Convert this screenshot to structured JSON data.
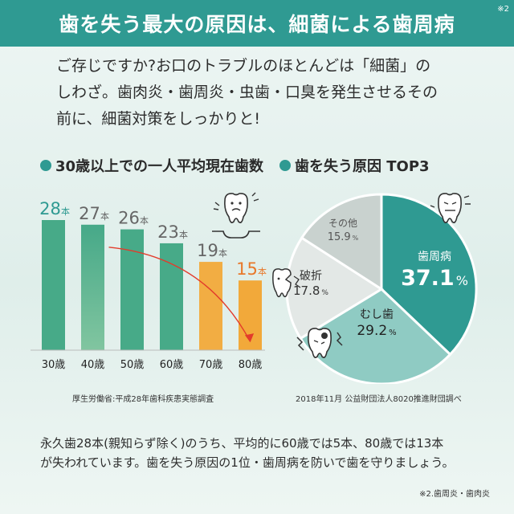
{
  "header": {
    "title": "歯を失う最大の原因は、細菌による歯周病",
    "sup": "※2"
  },
  "intro": {
    "line1": "ご存じですか?お口のトラブルのほとんどは「細菌」の",
    "line2": "しわざ。歯肉炎・歯周炎・虫歯・口臭を発生させるその",
    "line3": "前に、細菌対策をしっかりと!"
  },
  "left_section": {
    "title": "30歳以上での一人平均現在歯数"
  },
  "right_section": {
    "title": "歯を失う原因 TOP3"
  },
  "sources": {
    "left": "厚生労働省:平成28年歯科疾患実態調査",
    "right": "2018年11月 公益財団法人8020推進財団調べ"
  },
  "note": {
    "line1": "永久歯28本(親知らず除く)のうち、平均的に60歳では5本、80歳では13本",
    "line2": "が失われています。歯を失う原因の1位・歯周病を防いで歯を守りましょう。"
  },
  "footnote": "※2.歯周炎・歯肉炎",
  "colors": {
    "teal": "#2f9a92",
    "light_teal": "#8fcbc3",
    "pale": "#e3e8e6",
    "gray": "#c9d2cf",
    "bar_green": "#3ea583",
    "bar_yellow": "#f2a93a",
    "bar_orange": "#e8782a",
    "arrow_red": "#e33b2b"
  },
  "icons": [
    "sad-tooth-icon",
    "loose-tooth-icon",
    "broken-tooth-icon",
    "decayed-tooth-icon"
  ],
  "chart_data": [
    {
      "type": "bar",
      "title": "30歳以上での一人平均現在歯数",
      "categories": [
        "30歳",
        "40歳",
        "50歳",
        "60歳",
        "70歳",
        "80歳"
      ],
      "values": [
        28,
        27,
        26,
        23,
        19,
        15
      ],
      "value_labels": [
        "28",
        "27",
        "26",
        "23",
        "19",
        "15"
      ],
      "unit": "本",
      "ylim": [
        0,
        28
      ],
      "annotation": "downward red arrow from 40歳 bar to 80歳 bar"
    },
    {
      "type": "pie",
      "title": "歯を失う原因 TOP3",
      "labels": [
        "歯周病",
        "むし歯",
        "破折",
        "その他"
      ],
      "values": [
        37.1,
        29.2,
        17.8,
        15.9
      ],
      "value_labels": [
        "37.1",
        "29.2",
        "17.8",
        "15.9"
      ],
      "unit": "%"
    }
  ]
}
